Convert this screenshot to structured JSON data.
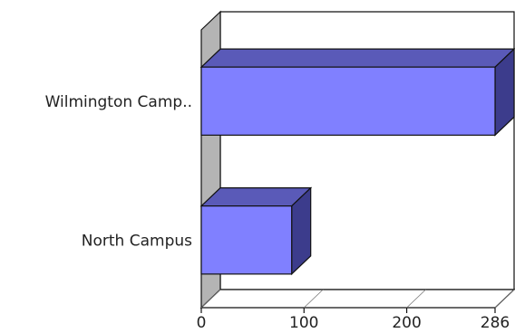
{
  "chart_data": {
    "type": "bar",
    "orientation": "horizontal",
    "style": "3d",
    "categories": [
      "North Campus",
      "Wilmington Camp.."
    ],
    "values": [
      88,
      286
    ],
    "xlim": [
      0,
      286
    ],
    "x_ticks": [
      0,
      100,
      200,
      286
    ],
    "title": "",
    "xlabel": "",
    "ylabel": "",
    "grid": false,
    "legend": "none",
    "colors": {
      "bar_front": "#8080ff",
      "bar_top": "#5a5ab8",
      "bar_side": "#3c3c8c",
      "wall_side": "#b4b4b4",
      "floor": "#ffffff",
      "outline": "#111111"
    }
  }
}
